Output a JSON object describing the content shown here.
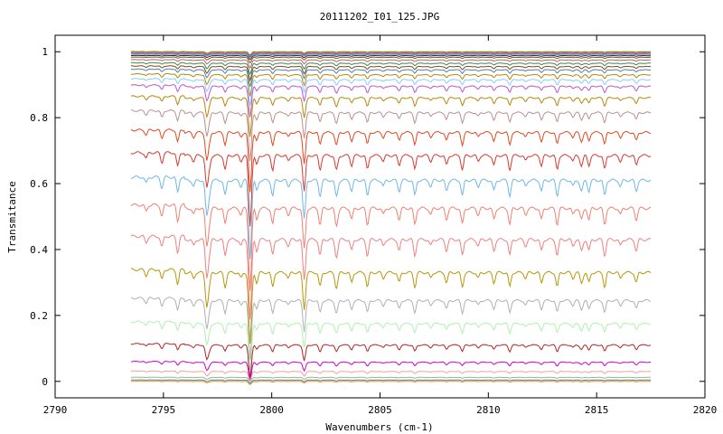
{
  "chart_data": {
    "type": "line",
    "title": "20111202_I01_125.JPG",
    "xlabel": "Wavenumbers (cm-1)",
    "ylabel": "Transmitance",
    "xlim": [
      2790,
      2820
    ],
    "ylim": [
      -0.05,
      1.05
    ],
    "x_ticks": [
      2790,
      2795,
      2800,
      2805,
      2810,
      2815,
      2820
    ],
    "y_ticks": [
      0,
      0.2,
      0.4,
      0.6,
      0.8,
      1
    ],
    "y_tick_labels": [
      "0",
      "0.2",
      "0.4",
      "0.6",
      "0.8",
      "1"
    ],
    "grid": false,
    "legend": "none",
    "x_range_of_series": [
      2793.5,
      2817.5
    ],
    "absorption_lines": [
      {
        "x": 2797.0,
        "depth": 0.25
      },
      {
        "x": 2799.0,
        "depth": 0.55
      },
      {
        "x": 2801.5,
        "depth": 0.2
      },
      {
        "x": 2803.0,
        "depth": 0.08
      },
      {
        "x": 2814.3,
        "depth": 0.08
      }
    ],
    "series": [
      {
        "baseline": 1.0,
        "color": "#228b22"
      },
      {
        "baseline": 0.998,
        "color": "#ff7f00"
      },
      {
        "baseline": 0.995,
        "color": "#9932cc"
      },
      {
        "baseline": 0.992,
        "color": "#00bfff"
      },
      {
        "baseline": 0.988,
        "color": "#8b0000"
      },
      {
        "baseline": 0.983,
        "color": "#556b2f"
      },
      {
        "baseline": 0.975,
        "color": "#cd5c5c"
      },
      {
        "baseline": 0.965,
        "color": "#2e8b57"
      },
      {
        "baseline": 0.955,
        "color": "#8b4513"
      },
      {
        "baseline": 0.945,
        "color": "#4682b4"
      },
      {
        "baseline": 0.93,
        "color": "#b8860b"
      },
      {
        "baseline": 0.915,
        "color": "#87cefa"
      },
      {
        "baseline": 0.895,
        "color": "#ba55d3"
      },
      {
        "baseline": 0.86,
        "color": "#b8860b"
      },
      {
        "baseline": 0.815,
        "color": "#bc8f8f"
      },
      {
        "baseline": 0.755,
        "color": "#e0491f"
      },
      {
        "baseline": 0.685,
        "color": "#d43a2f"
      },
      {
        "baseline": 0.61,
        "color": "#6fb7e6"
      },
      {
        "baseline": 0.525,
        "color": "#f08070"
      },
      {
        "baseline": 0.43,
        "color": "#f08080"
      },
      {
        "baseline": 0.33,
        "color": "#b8960b"
      },
      {
        "baseline": 0.245,
        "color": "#b0b0b0"
      },
      {
        "baseline": 0.175,
        "color": "#b0f0b0"
      },
      {
        "baseline": 0.11,
        "color": "#b22222"
      },
      {
        "baseline": 0.058,
        "color": "#cc00cc"
      },
      {
        "baseline": 0.03,
        "color": "#f0a0a0"
      },
      {
        "baseline": 0.012,
        "color": "#8fbc8f"
      },
      {
        "baseline": 0.004,
        "color": "#4682b4"
      },
      {
        "baseline": 0.0,
        "color": "#ff8c00"
      }
    ]
  }
}
